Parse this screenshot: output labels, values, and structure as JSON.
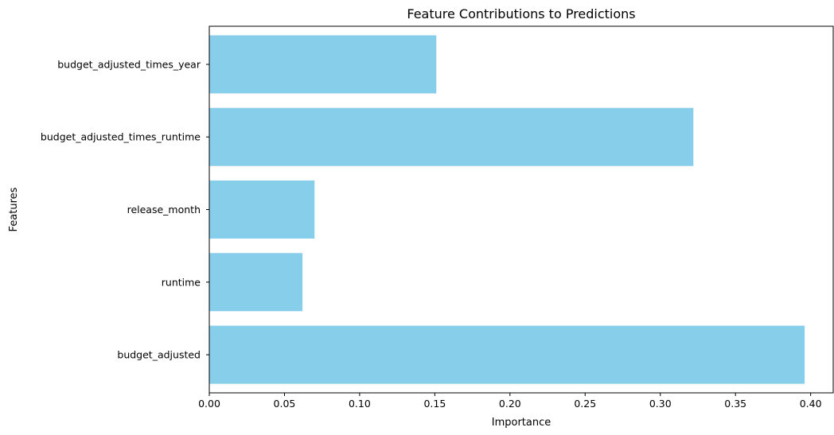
{
  "chart_data": {
    "type": "bar",
    "orientation": "horizontal",
    "title": "Feature Contributions to Predictions",
    "xlabel": "Importance",
    "ylabel": "Features",
    "categories": [
      "budget_adjusted",
      "runtime",
      "release_month",
      "budget_adjusted_times_runtime",
      "budget_adjusted_times_year"
    ],
    "values": [
      0.396,
      0.062,
      0.07,
      0.322,
      0.151
    ],
    "xlim": [
      0,
      0.415
    ],
    "xticks": [
      "0.00",
      "0.05",
      "0.10",
      "0.15",
      "0.20",
      "0.25",
      "0.30",
      "0.35",
      "0.40"
    ],
    "bar_color": "#87ceeb",
    "grid": false
  }
}
